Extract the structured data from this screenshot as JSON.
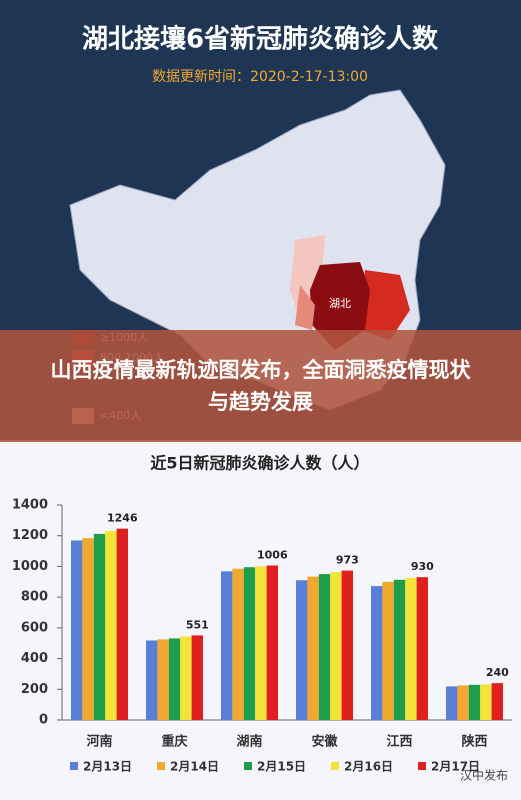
{
  "header": {
    "title": "湖北接壤6省新冠肺炎确诊人数",
    "update_time": "数据更新时间：2020-2-17-13:00"
  },
  "map": {
    "highlight_label": "湖北",
    "legend": [
      {
        "label": "≥1000人",
        "color": "#8b0d12"
      },
      {
        "label": "800-1000人",
        "color": "#d42a20"
      },
      {
        "label": "<400人",
        "color": "#f3c6c0"
      }
    ]
  },
  "banner": {
    "text": "山西疫情最新轨迹图发布，全面洞悉疫情现状与趋势发展"
  },
  "chart_data": {
    "type": "bar",
    "title": "近5日新冠肺炎确诊人数（人）",
    "categories": [
      "河南",
      "重庆",
      "湖南",
      "安徽",
      "江西",
      "陕西"
    ],
    "series": [
      {
        "name": "2月13日",
        "color": "#5a7fd8",
        "values": [
          1169,
          518,
          968,
          910,
          872,
          219
        ]
      },
      {
        "name": "2月14日",
        "color": "#f0a830",
        "values": [
          1184,
          525,
          985,
          934,
          900,
          225
        ]
      },
      {
        "name": "2月15日",
        "color": "#1e9e4a",
        "values": [
          1212,
          531,
          995,
          950,
          913,
          229
        ]
      },
      {
        "name": "2月16日",
        "color": "#f3e43a",
        "values": [
          1231,
          544,
          1001,
          962,
          925,
          232
        ]
      },
      {
        "name": "2月17日",
        "color": "#e0201e",
        "values": [
          1246,
          551,
          1006,
          973,
          930,
          240
        ],
        "show_labels": true
      }
    ],
    "ylim": [
      0,
      1400
    ],
    "yticks": [
      0,
      200,
      400,
      600,
      800,
      1000,
      1200,
      1400
    ],
    "grid": false
  },
  "footer": {
    "watermark": "汉中发布"
  }
}
